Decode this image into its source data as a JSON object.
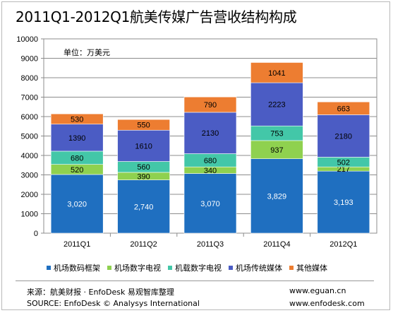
{
  "title": "2011Q1-2012Q1航美传媒广告营收结构构成",
  "unit_label": "单位：万美元",
  "colors": {
    "airport_digital_frame": "#1f6fc0",
    "airport_digital_tv": "#8fd14f",
    "airborne_digital_tv": "#43c7a8",
    "airport_traditional": "#4b5cc4",
    "other": "#ed7d31"
  },
  "chart_data": {
    "type": "bar",
    "stacked": true,
    "categories": [
      "2011Q1",
      "2011Q2",
      "2011Q3",
      "2011Q4",
      "2012Q1"
    ],
    "ylim": [
      0,
      10000
    ],
    "yticks": [
      0,
      1000,
      2000,
      3000,
      4000,
      5000,
      6000,
      7000,
      8000,
      9000,
      10000
    ],
    "grid": true,
    "legend_position": "bottom",
    "series": [
      {
        "name": "机场数码框架",
        "values": [
          3020,
          2740,
          3070,
          3829,
          3193
        ],
        "labels": [
          "3,020",
          "2,740",
          "3,070",
          "3,829",
          "3,193"
        ]
      },
      {
        "name": "机场数字电视",
        "values": [
          520,
          390,
          340,
          937,
          217
        ],
        "labels": [
          "520",
          "390",
          "340",
          "937",
          "217"
        ]
      },
      {
        "name": "机载数字电视",
        "values": [
          680,
          560,
          680,
          753,
          502
        ],
        "labels": [
          "680",
          "560",
          "680",
          "753",
          "502"
        ]
      },
      {
        "name": "机场传统媒体",
        "values": [
          1390,
          1610,
          2130,
          2223,
          2180
        ],
        "labels": [
          "1390",
          "1610",
          "2130",
          "2223",
          "2180"
        ]
      },
      {
        "name": "其他媒体",
        "values": [
          530,
          550,
          790,
          1041,
          663
        ],
        "labels": [
          "530",
          "550",
          "790",
          "1041",
          "663"
        ]
      }
    ]
  },
  "footer": {
    "source_cn": "来源：航美财报 · EnfoDesk 易观智库整理",
    "source_en": "SOURCE: EnfoDesk © Analysys International",
    "url1": "www.eguan.cn",
    "url2": "www.enfodesk.com"
  }
}
